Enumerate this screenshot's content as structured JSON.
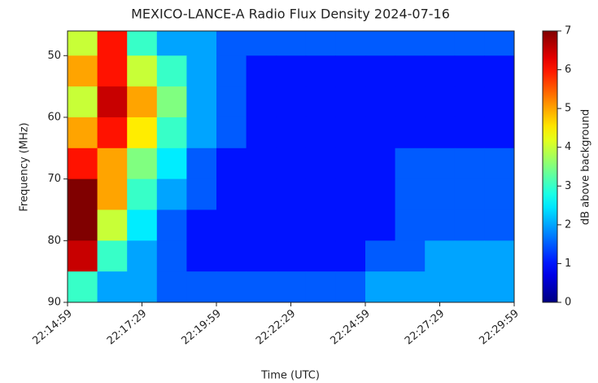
{
  "chart_data": {
    "type": "heatmap",
    "title": "MEXICO-LANCE-A Radio Flux Density 2024-07-16",
    "xlabel": "Time (UTC)",
    "ylabel": "Frequency (MHz)",
    "colorbar_label": "dB above background",
    "colormap": "jet",
    "xlim": [
      80099,
      80999
    ],
    "xticks": [
      {
        "value": 80099,
        "label": "22:14:59"
      },
      {
        "value": 80249,
        "label": "22:17:29"
      },
      {
        "value": 80399,
        "label": "22:19:59"
      },
      {
        "value": 80549,
        "label": "22:22:29"
      },
      {
        "value": 80699,
        "label": "22:24:59"
      },
      {
        "value": 80849,
        "label": "22:27:29"
      },
      {
        "value": 80999,
        "label": "22:29:59"
      }
    ],
    "ylim": [
      90,
      46
    ],
    "yticks": [
      50,
      60,
      70,
      80,
      90
    ],
    "clim": [
      0,
      7
    ],
    "cticks": [
      0,
      1,
      2,
      3,
      4,
      5,
      6,
      7
    ],
    "xbins": [
      80099,
      80159,
      80219,
      80279,
      80339,
      80399,
      80459,
      80519,
      80579,
      80639,
      80699,
      80759,
      80819,
      80879,
      80939,
      80999
    ],
    "ybins": [
      46,
      50,
      55,
      60,
      65,
      70,
      75,
      80,
      85,
      90
    ],
    "values": [
      [
        4,
        6,
        3,
        2,
        2,
        1.5,
        1.5,
        1.5,
        1.5,
        1.5,
        1.5,
        1.5,
        1.5,
        1.5,
        1.5
      ],
      [
        5,
        6,
        4,
        3,
        2,
        1.5,
        1,
        1,
        1,
        1,
        1,
        1,
        1,
        1,
        1
      ],
      [
        4,
        6.5,
        5,
        3.5,
        2,
        1.5,
        1,
        1,
        1,
        1,
        1,
        1,
        1,
        1,
        1
      ],
      [
        5,
        6,
        4.5,
        3,
        2,
        1.5,
        1,
        1,
        1,
        1,
        1,
        1,
        1,
        1,
        1
      ],
      [
        6,
        5,
        3.5,
        2.5,
        1.5,
        1,
        1,
        1,
        1,
        1,
        1,
        1.5,
        1.5,
        1.5,
        1.5
      ],
      [
        7,
        5,
        3,
        2,
        1.5,
        1,
        1,
        1,
        1,
        1,
        1,
        1.5,
        1.5,
        1.5,
        1.5
      ],
      [
        7,
        4,
        2.5,
        1.5,
        1,
        1,
        1,
        1,
        1,
        1,
        1,
        1.5,
        1.5,
        1.5,
        1.5
      ],
      [
        6.5,
        3,
        2,
        1.5,
        1,
        1,
        1,
        1,
        1,
        1,
        1.5,
        1.5,
        2,
        2,
        2
      ],
      [
        3,
        2,
        2,
        1.5,
        1.5,
        1.5,
        1.5,
        1.5,
        1.5,
        1.5,
        2,
        2,
        2,
        2,
        2
      ]
    ]
  }
}
